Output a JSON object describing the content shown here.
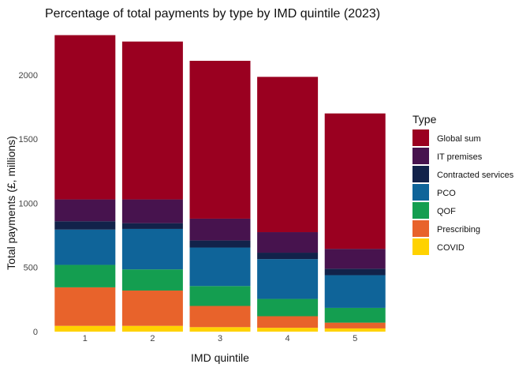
{
  "chart_data": {
    "type": "bar",
    "stacked": true,
    "title": "Percentage of total payments by type by IMD quintile (2023)",
    "xlabel": "IMD quintile",
    "ylabel": "Total payments (£, millions)",
    "categories": [
      "1",
      "2",
      "3",
      "4",
      "5"
    ],
    "ylim": [
      0,
      2350
    ],
    "yticks": [
      0,
      500,
      1000,
      1500,
      2000
    ],
    "grid": false,
    "legend": {
      "title": "Type",
      "placement": "right"
    },
    "series": [
      {
        "name": "COVID",
        "color": "#FFD200",
        "values": [
          45,
          45,
          35,
          30,
          25
        ]
      },
      {
        "name": "Prescribing",
        "color": "#E8632B",
        "values": [
          300,
          275,
          165,
          90,
          45
        ]
      },
      {
        "name": "QOF",
        "color": "#149E50",
        "values": [
          175,
          165,
          155,
          135,
          115
        ]
      },
      {
        "name": "PCO",
        "color": "#0F6499",
        "values": [
          275,
          315,
          300,
          310,
          255
        ]
      },
      {
        "name": "Contracted services",
        "color": "#12224A",
        "values": [
          65,
          45,
          55,
          50,
          50
        ]
      },
      {
        "name": "IT premises",
        "color": "#47134E",
        "values": [
          170,
          185,
          170,
          160,
          155
        ]
      },
      {
        "name": "Global sum",
        "color": "#9A0020",
        "values": [
          1280,
          1230,
          1230,
          1210,
          1055
        ]
      }
    ],
    "legend_order": [
      "Global sum",
      "IT premises",
      "Contracted services",
      "PCO",
      "QOF",
      "Prescribing",
      "COVID"
    ]
  }
}
